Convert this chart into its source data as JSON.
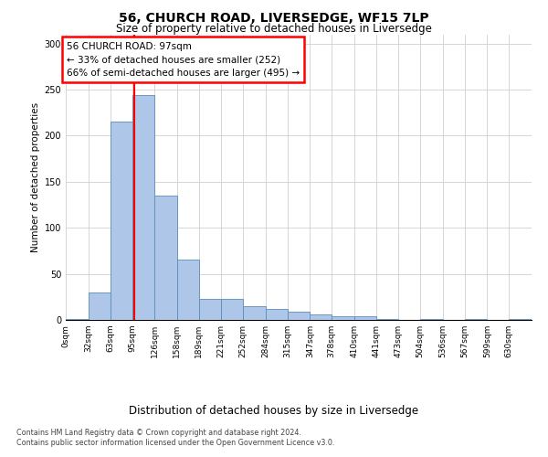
{
  "title1": "56, CHURCH ROAD, LIVERSEDGE, WF15 7LP",
  "title2": "Size of property relative to detached houses in Liversedge",
  "xlabel": "Distribution of detached houses by size in Liversedge",
  "ylabel": "Number of detached properties",
  "bar_values": [
    1,
    30,
    215,
    244,
    135,
    65,
    23,
    23,
    15,
    12,
    9,
    6,
    4,
    4,
    1,
    0,
    1,
    0,
    1,
    0,
    1
  ],
  "bin_edges": [
    0,
    32,
    63,
    95,
    126,
    158,
    189,
    221,
    252,
    284,
    315,
    347,
    378,
    410,
    441,
    473,
    504,
    536,
    567,
    599,
    630
  ],
  "tick_labels": [
    "0sqm",
    "32sqm",
    "63sqm",
    "95sqm",
    "126sqm",
    "158sqm",
    "189sqm",
    "221sqm",
    "252sqm",
    "284sqm",
    "315sqm",
    "347sqm",
    "378sqm",
    "410sqm",
    "441sqm",
    "473sqm",
    "504sqm",
    "536sqm",
    "567sqm",
    "599sqm",
    "630sqm"
  ],
  "bar_color": "#aec6e8",
  "bar_edge_color": "#5b8db8",
  "property_size": 97,
  "annotation_text": "56 CHURCH ROAD: 97sqm\n← 33% of detached houses are smaller (252)\n66% of semi-detached houses are larger (495) →",
  "footer1": "Contains HM Land Registry data © Crown copyright and database right 2024.",
  "footer2": "Contains public sector information licensed under the Open Government Licence v3.0.",
  "ylim_max": 310,
  "yticks": [
    0,
    50,
    100,
    150,
    200,
    250,
    300
  ],
  "title1_fontsize": 10,
  "title2_fontsize": 8.5,
  "xlabel_fontsize": 8.5,
  "ylabel_fontsize": 7.5,
  "tick_fontsize": 6.5,
  "annotation_fontsize": 7.5,
  "footer_fontsize": 5.8
}
